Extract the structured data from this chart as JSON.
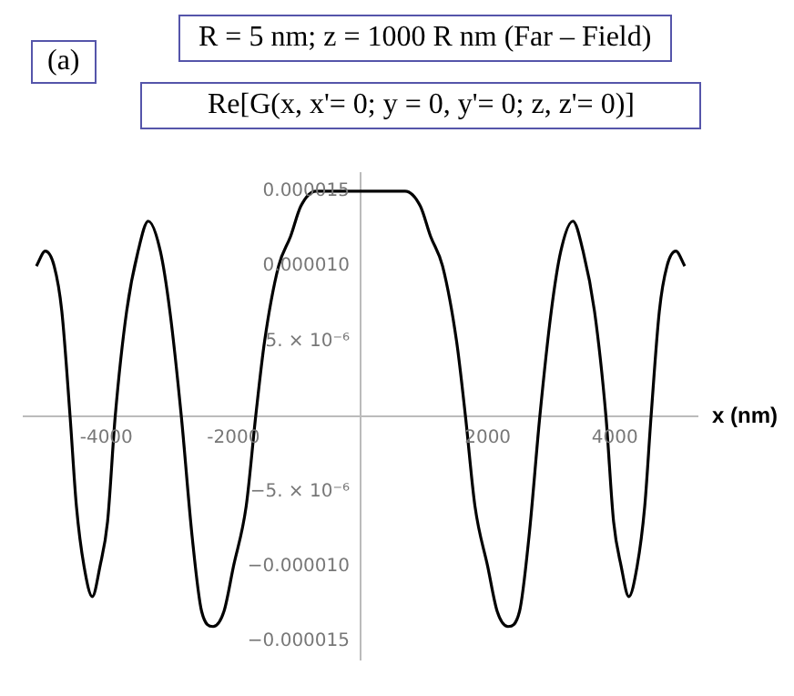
{
  "chart_data": {
    "type": "line",
    "title": "R = 5 nm; z = 1000 R nm (Far – Field)",
    "subtitle": "Re[G(x, x'= 0; y = 0, y'= 0; z, z'= 0)]",
    "annotations": [
      "(a)"
    ],
    "xlabel": "x (nm)",
    "x": [
      -5100,
      -4960,
      -4820,
      -4700,
      -4570,
      -4470,
      -4350,
      -4220,
      -4100,
      -3980,
      -3860,
      -3680,
      -3500,
      -3340,
      -3150,
      -3000,
      -2820,
      -2650,
      -2500,
      -2320,
      -2150,
      -2000,
      -1800,
      -1650,
      -1510,
      -1290,
      -1100,
      -940,
      -700,
      -400,
      0,
      400,
      700,
      940,
      1100,
      1290,
      1510,
      1650,
      1800,
      2000,
      2150,
      2320,
      2500,
      2650,
      2820,
      3000,
      3150,
      3340,
      3500,
      3680,
      3860,
      3980,
      4100,
      4220,
      4350,
      4470,
      4570,
      4700,
      4820,
      4960,
      5100
    ],
    "series": [
      {
        "color": "#000000",
        "values": [
          1e-05,
          1.1e-05,
          1e-05,
          7e-06,
          0,
          -6e-06,
          -1e-05,
          -1.2e-05,
          -1e-05,
          -7e-06,
          0,
          7e-06,
          1.1e-05,
          1.3e-05,
          1.1e-05,
          7e-06,
          0,
          -8e-06,
          -1.3e-05,
          -1.4e-05,
          -1.3e-05,
          -1e-05,
          -6e-06,
          0,
          5e-06,
          1e-05,
          1.2e-05,
          1.4e-05,
          1.5e-05,
          1.5e-05,
          1.5e-05,
          1.5e-05,
          1.5e-05,
          1.4e-05,
          1.2e-05,
          1e-05,
          5e-06,
          0,
          -6e-06,
          -1e-05,
          -1.3e-05,
          -1.4e-05,
          -1.3e-05,
          -8e-06,
          0,
          7e-06,
          1.1e-05,
          1.3e-05,
          1.1e-05,
          7e-06,
          0,
          -7e-06,
          -1e-05,
          -1.2e-05,
          -1e-05,
          -6e-06,
          0,
          7e-06,
          1e-05,
          1.1e-05,
          1e-05
        ]
      }
    ],
    "xlim": [
      -5300,
      5300
    ],
    "ylim": [
      -1.62e-05,
      1.62e-05
    ],
    "xticks": [
      -4000,
      -2000,
      2000,
      4000
    ],
    "yticks": [
      {
        "value": 1.5e-05,
        "label": "0.000015"
      },
      {
        "value": 1e-05,
        "label": "0.000010"
      },
      {
        "value": 5e-06,
        "label": "5. × 10⁻⁶"
      },
      {
        "value": -5e-06,
        "label": "−5. × 10⁻⁶"
      },
      {
        "value": -1e-05,
        "label": "−0.000010"
      },
      {
        "value": -1.5e-05,
        "label": "−0.000015"
      }
    ],
    "grid": false,
    "legend": false,
    "marker": "none",
    "line_style": "solid"
  }
}
